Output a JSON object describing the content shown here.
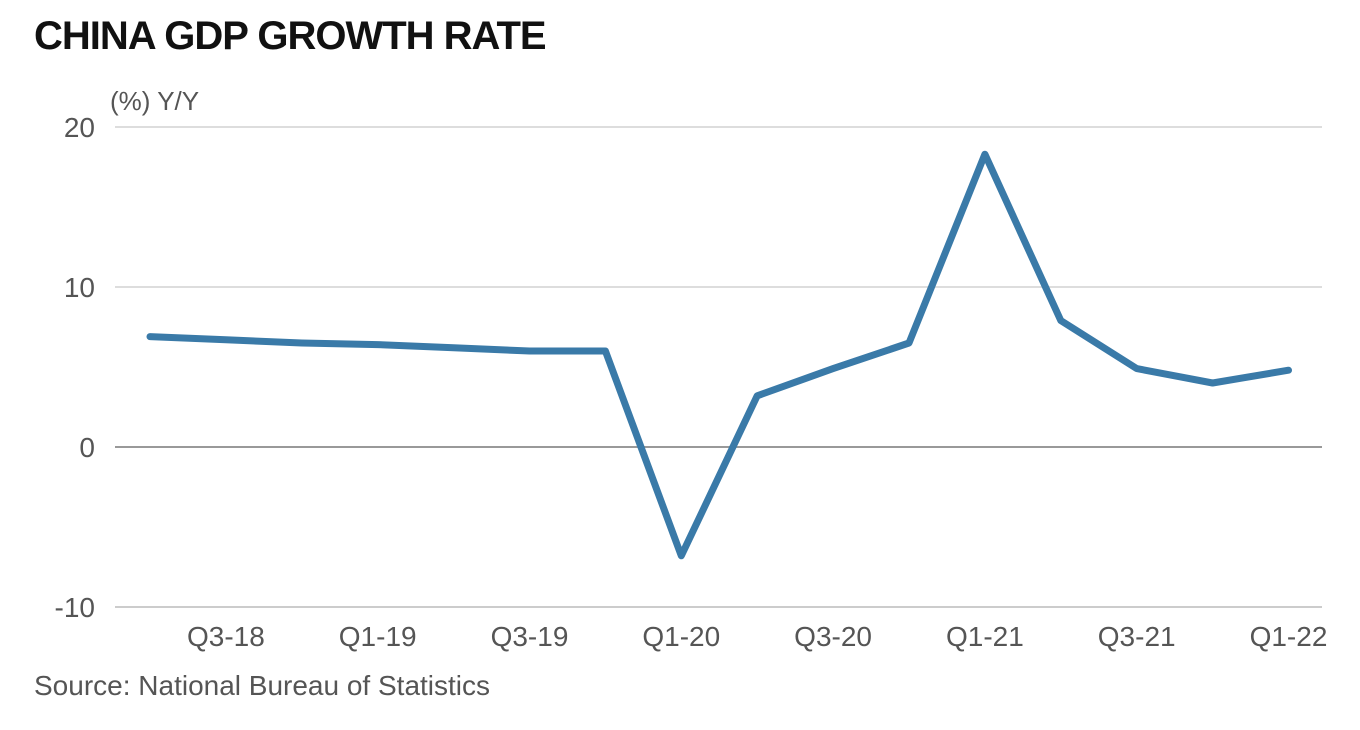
{
  "chart_data": {
    "type": "line",
    "title": "CHINA GDP GROWTH RATE",
    "ylabel": "(%) Y/Y",
    "source": "Source: National Bureau of Statistics",
    "x": [
      "Q2-18",
      "Q3-18",
      "Q4-18",
      "Q1-19",
      "Q2-19",
      "Q3-19",
      "Q4-19",
      "Q1-20",
      "Q2-20",
      "Q3-20",
      "Q4-20",
      "Q1-21",
      "Q2-21",
      "Q3-21",
      "Q4-21",
      "Q1-22"
    ],
    "x_tick_labels": [
      "Q3-18",
      "Q1-19",
      "Q3-19",
      "Q1-20",
      "Q3-20",
      "Q1-21",
      "Q3-21",
      "Q1-22"
    ],
    "y_ticks": [
      "20",
      "10",
      "0",
      "-10"
    ],
    "ylim": [
      -10,
      20
    ],
    "grid": true,
    "series": [
      {
        "values": [
          6.9,
          6.7,
          6.5,
          6.4,
          6.2,
          6.0,
          6.0,
          -6.8,
          3.2,
          4.9,
          6.5,
          18.3,
          7.9,
          4.9,
          4.0,
          4.8
        ],
        "color": "#3a7aa8"
      }
    ],
    "colors": {
      "grid": "#dddddd",
      "zero_line": "#999999",
      "axis": "#cccccc"
    }
  }
}
